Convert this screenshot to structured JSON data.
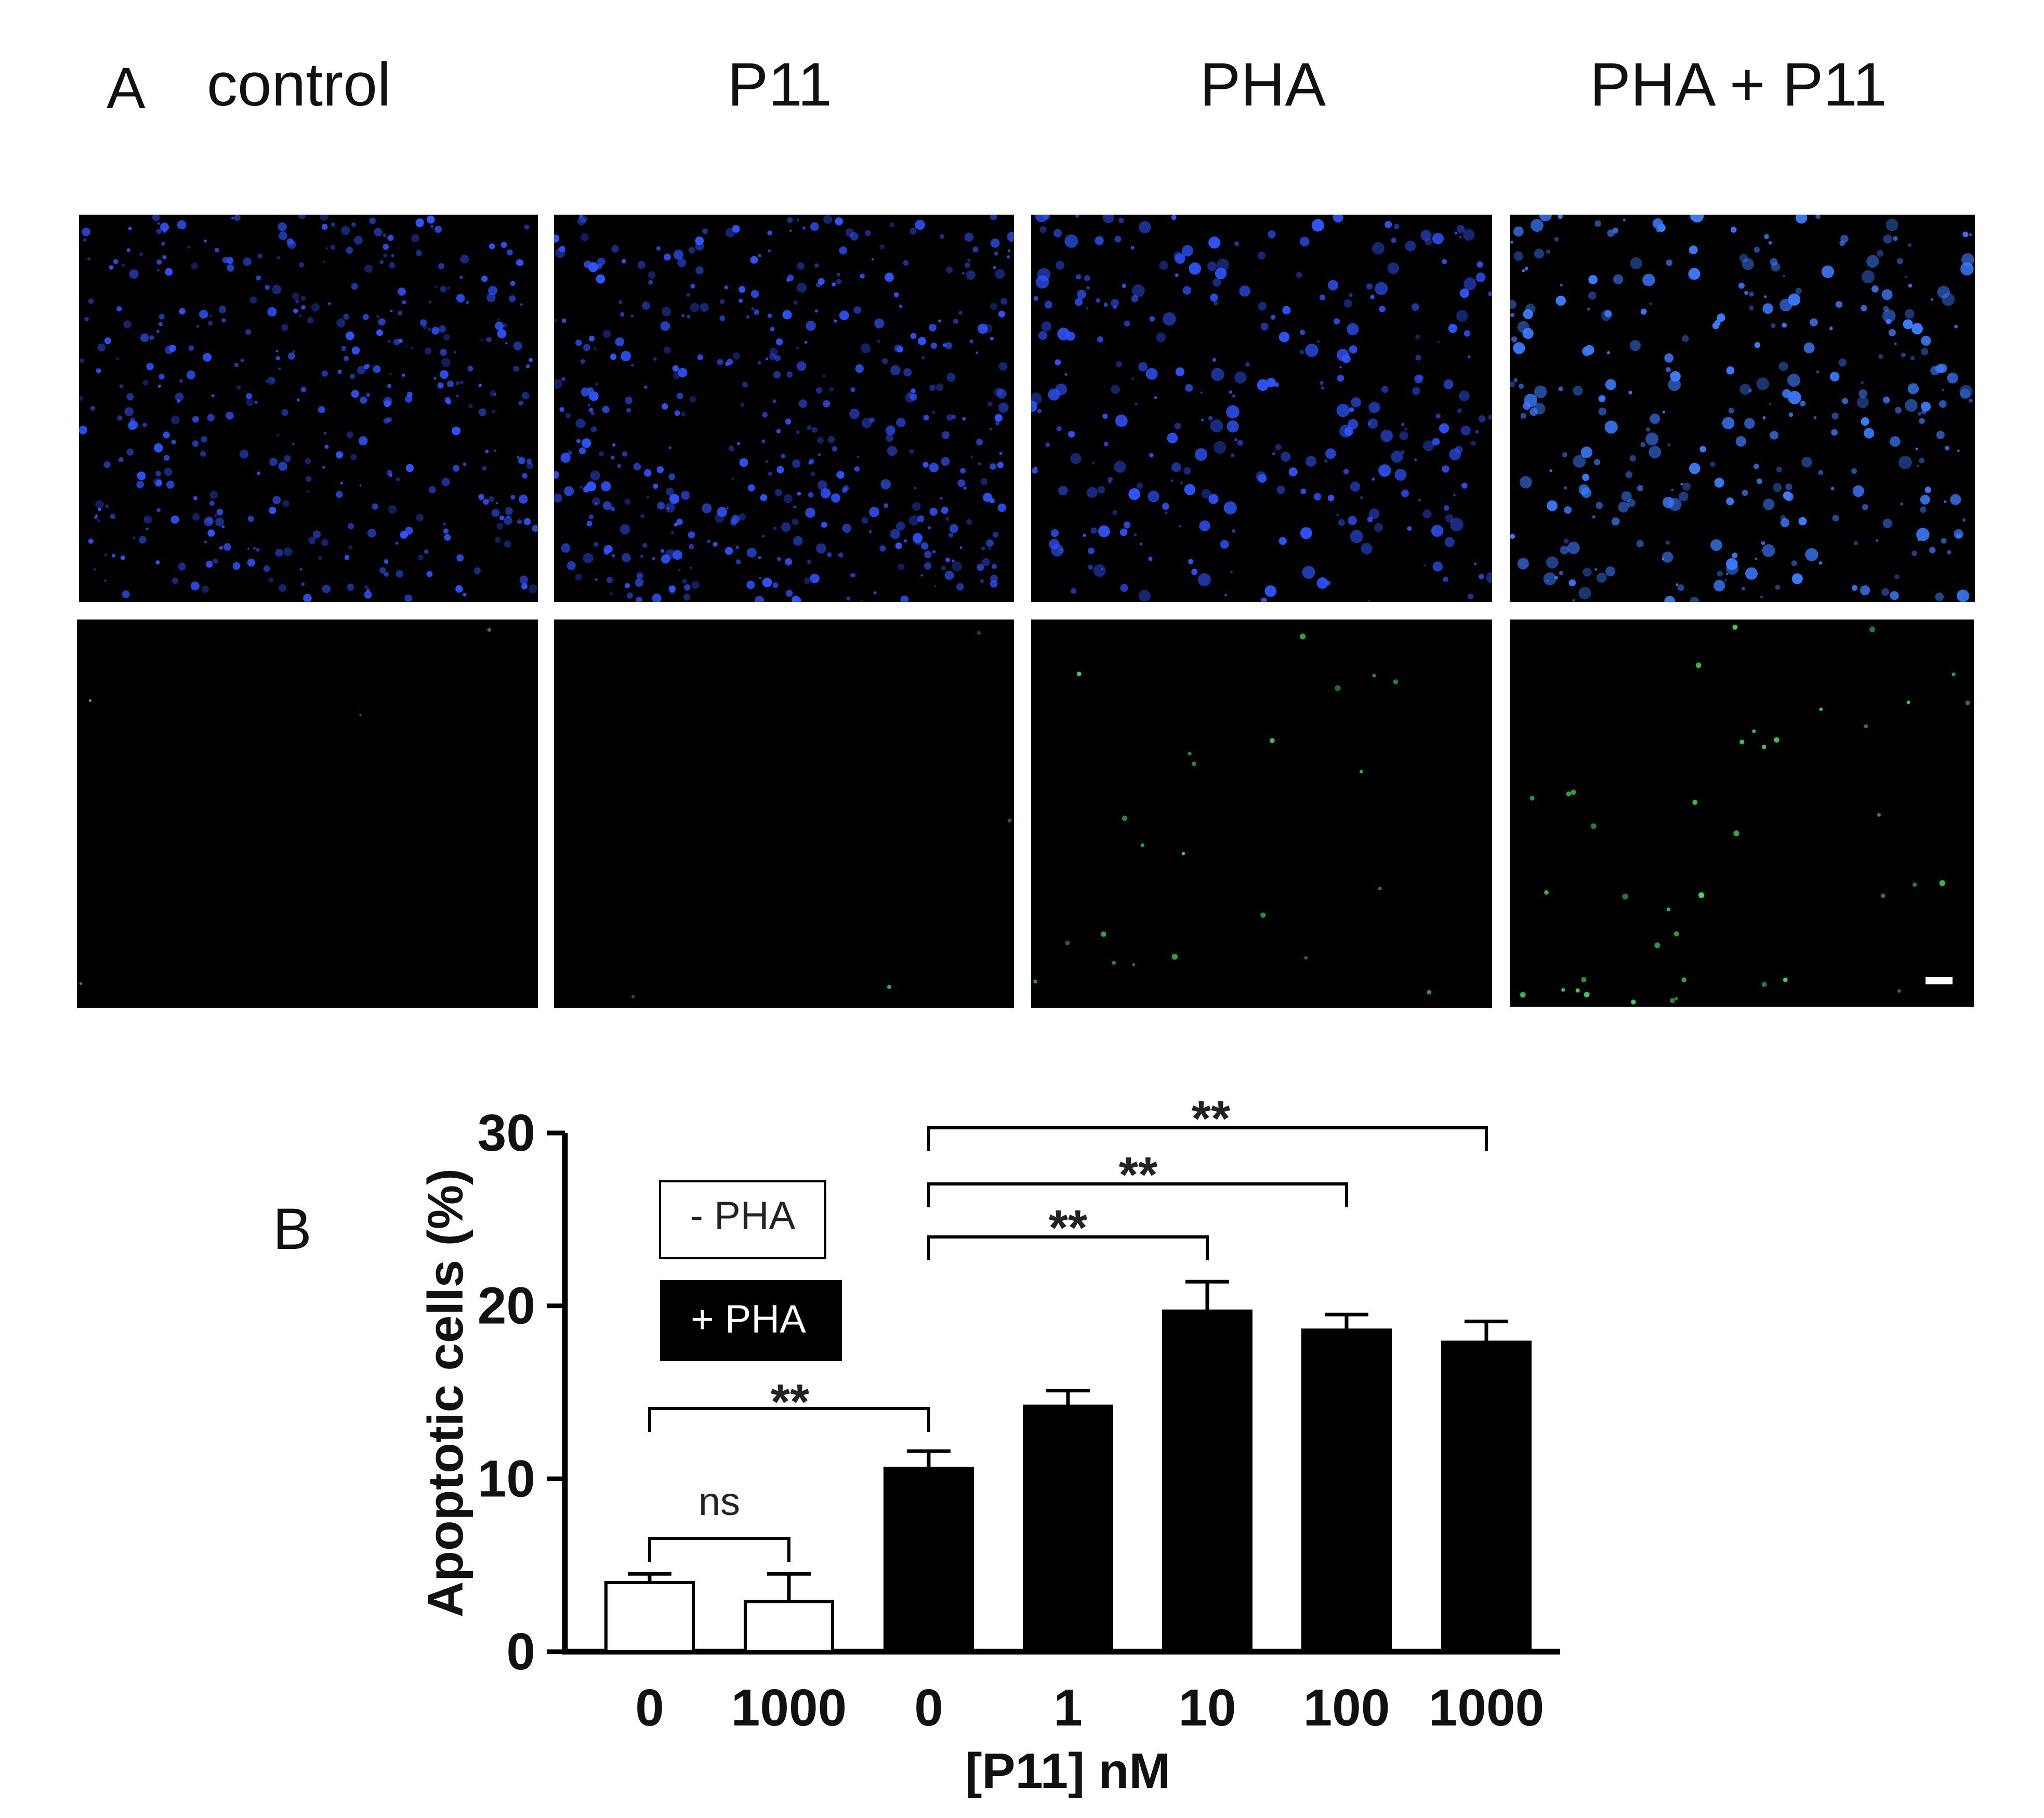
{
  "panel_a": {
    "letter": "A",
    "columns": [
      "control",
      "P11",
      "PHA",
      "PHA + P11"
    ],
    "rows": [
      "blue-stain",
      "green-stain"
    ]
  },
  "panel_b_letter": "B",
  "colors": {
    "blue_stain": "#2f54ff",
    "green_stain": "#39d85a",
    "bar_minus_pha": "#ffffff",
    "bar_plus_pha": "#000000"
  },
  "chart_data": {
    "type": "bar",
    "title": "",
    "xlabel": "[P11] nM",
    "ylabel": "Apoptotic cells (%)",
    "ylim": [
      0,
      30
    ],
    "yticks": [
      0,
      10,
      20,
      30
    ],
    "categories": [
      "0",
      "1000",
      "0",
      "1",
      "10",
      "100",
      "1000"
    ],
    "values": [
      4.0,
      2.9,
      10.6,
      14.2,
      19.7,
      18.6,
      17.9
    ],
    "errors": [
      0.5,
      1.6,
      1.0,
      0.9,
      1.7,
      0.9,
      1.2
    ],
    "groups": [
      "- PHA",
      "- PHA",
      "+ PHA",
      "+ PHA",
      "+ PHA",
      "+ PHA",
      "+ PHA"
    ],
    "legend": [
      {
        "label": "- PHA",
        "fill": "white"
      },
      {
        "label": "+ PHA",
        "fill": "black"
      }
    ],
    "significance": [
      {
        "from": 0,
        "to": 1,
        "label": "ns"
      },
      {
        "from": 0,
        "to": 2,
        "label": "**"
      },
      {
        "from": 2,
        "to": 4,
        "label": "**"
      },
      {
        "from": 2,
        "to": 5,
        "label": "**"
      },
      {
        "from": 2,
        "to": 6,
        "label": "**"
      }
    ]
  }
}
